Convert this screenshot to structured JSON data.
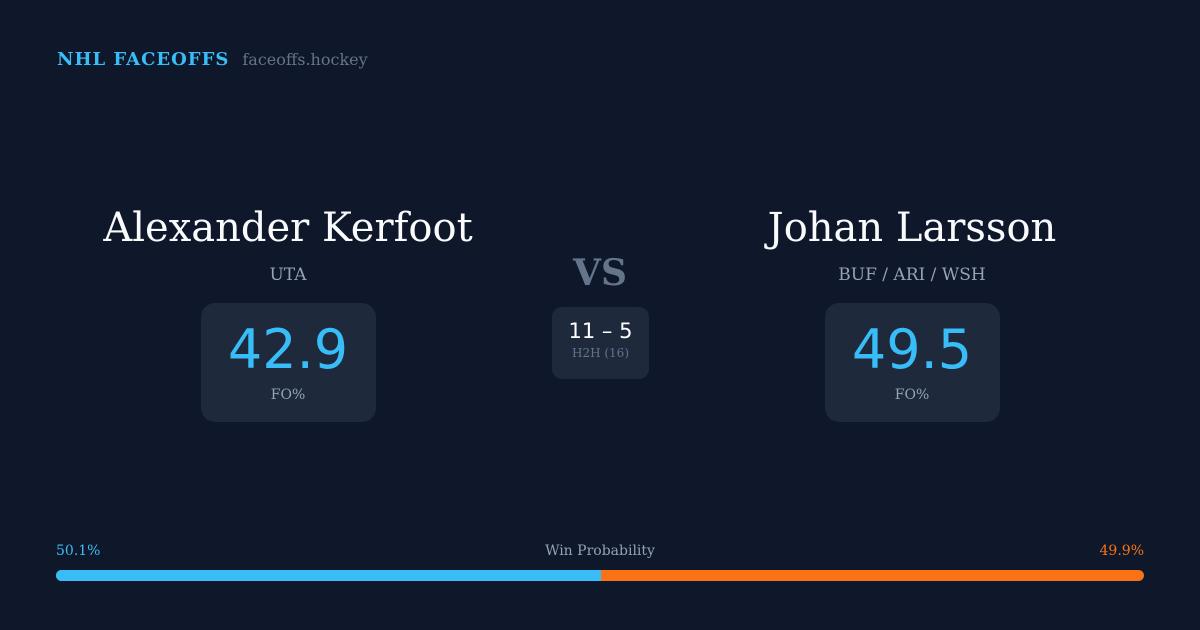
{
  "brand": {
    "title": "NHL FACEOFFS",
    "url": "faceoffs.hockey"
  },
  "left": {
    "name": "Alexander Kerfoot",
    "team": "UTA",
    "fo_pct": "42.9",
    "fo_label": "FO%"
  },
  "right": {
    "name": "Johan Larsson",
    "team": "BUF / ARI / WSH",
    "fo_pct": "49.5",
    "fo_label": "FO%"
  },
  "vs": "VS",
  "h2h": {
    "score": "11 – 5",
    "label": "H2H (16)"
  },
  "win_probability": {
    "label": "Win Probability",
    "left": "50.1%",
    "right": "49.9%",
    "left_value": 50.1,
    "right_value": 49.9
  },
  "colors": {
    "left": "#38bdf8",
    "right": "#f97316",
    "background": "#0f172a",
    "card": "#1e293b"
  }
}
